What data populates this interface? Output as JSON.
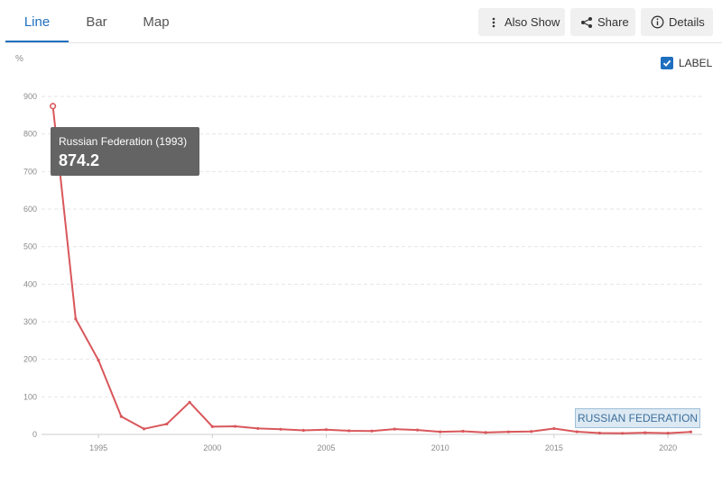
{
  "tabs": [
    {
      "label": "Line",
      "active": true
    },
    {
      "label": "Bar",
      "active": false
    },
    {
      "label": "Map",
      "active": false
    }
  ],
  "toolbar": {
    "also_show": "Also Show",
    "share": "Share",
    "details": "Details"
  },
  "label_toggle": {
    "text": "LABEL",
    "checked": true
  },
  "tooltip": {
    "name": "Russian Federation (1993)",
    "value": "874.2"
  },
  "series_label": "RUSSIAN FEDERATION",
  "colors": {
    "accent": "#1f6fbf",
    "series": "#d9575b"
  },
  "chart_data": {
    "type": "line",
    "ylabel": "%",
    "xlabel": "",
    "xlim": [
      1992.5,
      2021.5
    ],
    "ylim": [
      0,
      900
    ],
    "xticks": [
      1995,
      2000,
      2005,
      2010,
      2015,
      2020
    ],
    "yticks": [
      0,
      100,
      200,
      300,
      400,
      500,
      600,
      700,
      800,
      900
    ],
    "grid": true,
    "series": [
      {
        "name": "RUSSIAN FEDERATION",
        "x": [
          1993,
          1994,
          1995,
          1996,
          1997,
          1998,
          1999,
          2000,
          2001,
          2002,
          2003,
          2004,
          2005,
          2006,
          2007,
          2008,
          2009,
          2010,
          2011,
          2012,
          2013,
          2014,
          2015,
          2016,
          2017,
          2018,
          2019,
          2020,
          2021
        ],
        "y": [
          874.2,
          307.6,
          197.5,
          47.7,
          14.8,
          27.7,
          85.7,
          20.8,
          21.5,
          15.8,
          13.7,
          10.9,
          12.7,
          9.7,
          9.0,
          14.1,
          11.7,
          6.9,
          8.4,
          5.1,
          6.8,
          7.8,
          15.5,
          7.1,
          3.7,
          2.9,
          4.5,
          3.4,
          6.7
        ]
      }
    ]
  }
}
